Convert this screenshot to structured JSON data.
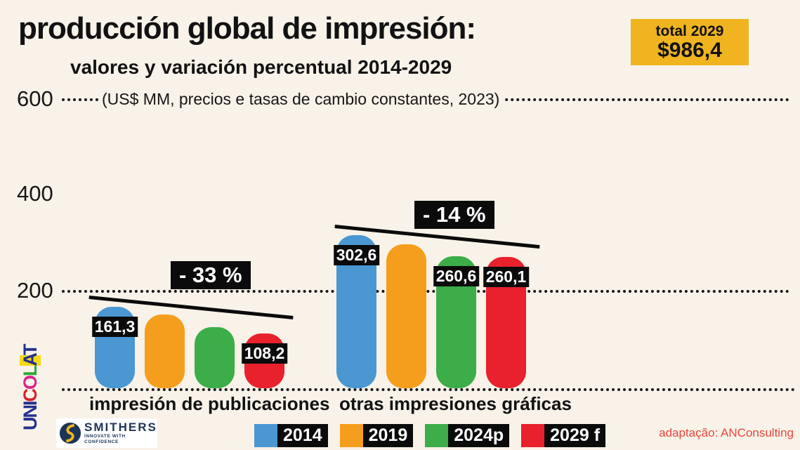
{
  "title": "producción global de impresión:",
  "subtitle": "valores y variación percentual 2014-2029",
  "unit_note": "(US$ MM, precios e tasas de cambio constantes, 2023)",
  "total_box": {
    "label": "total 2029",
    "value": "$986,4",
    "color": "#EFB41F"
  },
  "axis": {
    "ticks": [
      "600",
      "400",
      "200"
    ]
  },
  "chart_data": {
    "type": "bar",
    "title": "producción global de impresión:",
    "subtitle": "valores y variación percentual 2014-2029",
    "unit": "US$ MM, precios e tasas de cambio constantes, 2023",
    "categories": [
      "impresión de publicaciones",
      "otras impresiones gráficas"
    ],
    "series": [
      {
        "name": "2014",
        "color": "#4A97D2",
        "values": [
          161.3,
          302.6
        ]
      },
      {
        "name": "2019",
        "color": "#F59E1E",
        "values": [
          146,
          285
        ]
      },
      {
        "name": "2024p",
        "color": "#3CAD49",
        "values": [
          121,
          260.6
        ]
      },
      {
        "name": "2029 f",
        "color": "#E8212C",
        "values": [
          108.2,
          260.1
        ]
      }
    ],
    "value_labels": [
      {
        "series": 0,
        "group": 0,
        "text": "161,3"
      },
      {
        "series": 3,
        "group": 0,
        "text": "108,2"
      },
      {
        "series": 0,
        "group": 1,
        "text": "302,6"
      },
      {
        "series": 2,
        "group": 1,
        "text": "260,6"
      },
      {
        "series": 3,
        "group": 1,
        "text": "260,1"
      }
    ],
    "annotations": [
      {
        "text": "- 33 %",
        "group": 0
      },
      {
        "text": "- 14 %",
        "group": 1
      }
    ],
    "total_label": "total 2029",
    "total_value": "$986,4",
    "ylim": [
      0,
      600
    ],
    "yticks": [
      600,
      400,
      200
    ],
    "grid": "dotted horizontal lines at 600, 200 and baseline",
    "legend_position": "bottom"
  },
  "groups": [
    {
      "label": "impresión de publicaciones",
      "pct": "- 33 %"
    },
    {
      "label": "otras impresiones gráficas",
      "pct": "- 14 %"
    }
  ],
  "footer": {
    "smithers_name": "SMITHERS",
    "smithers_tagline": "INNOVATE WITH CONFIDENCE",
    "credit": "adaptação: ANConsulting",
    "unicolat": {
      "text": "UNICOLAT",
      "colors": [
        "#24318E",
        "#24318E",
        "#24318E",
        "#D6212A",
        "#E0218A",
        "#2EA836",
        "#24318E",
        "#24318E"
      ],
      "highlight_index": 6,
      "highlight_color": "#F5D916"
    }
  }
}
